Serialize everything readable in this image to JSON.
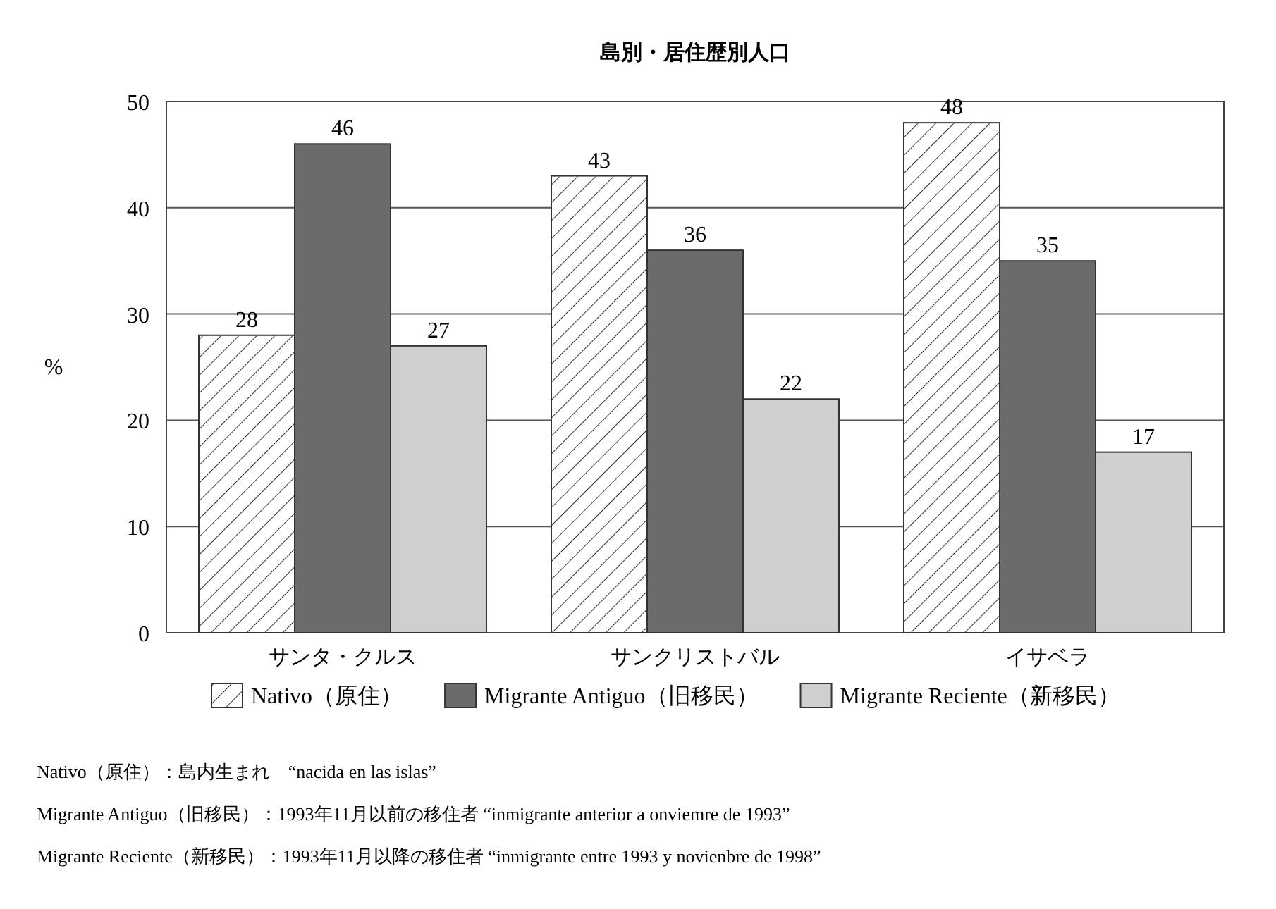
{
  "chart_data": {
    "type": "bar",
    "title": "島別・居住歴別人口",
    "ylabel": "%",
    "categories": [
      "サンタ・クルス",
      "サンクリストバル",
      "イサベラ"
    ],
    "series": [
      {
        "name": "Nativo（原住）",
        "color": "#ffffff",
        "values": [
          28,
          43,
          48
        ]
      },
      {
        "name": "Migrante Antiguo（旧移民）",
        "color": "#6b6b6b",
        "values": [
          46,
          36,
          35
        ]
      },
      {
        "name": "Migrante Reciente（新移民）",
        "color": "#cfcfcf",
        "values": [
          27,
          22,
          17
        ]
      }
    ],
    "ylim": [
      0,
      50
    ],
    "yticks": [
      0,
      10,
      20,
      30,
      40,
      50
    ],
    "grid": "y",
    "legend": "bottom",
    "data_labels": true,
    "annotations": [
      "Nativo（原住）：島内生まれ　“nacida en las islas”",
      "Migrante Antiguo（旧移民）：1993年11月以前の移住者 “inmigrante anterior a onviemre de 1993”",
      "Migrante Reciente（新移民）：1993年11月以降の移住者 “inmigrante entre 1993 y novienbre de 1998”"
    ]
  }
}
